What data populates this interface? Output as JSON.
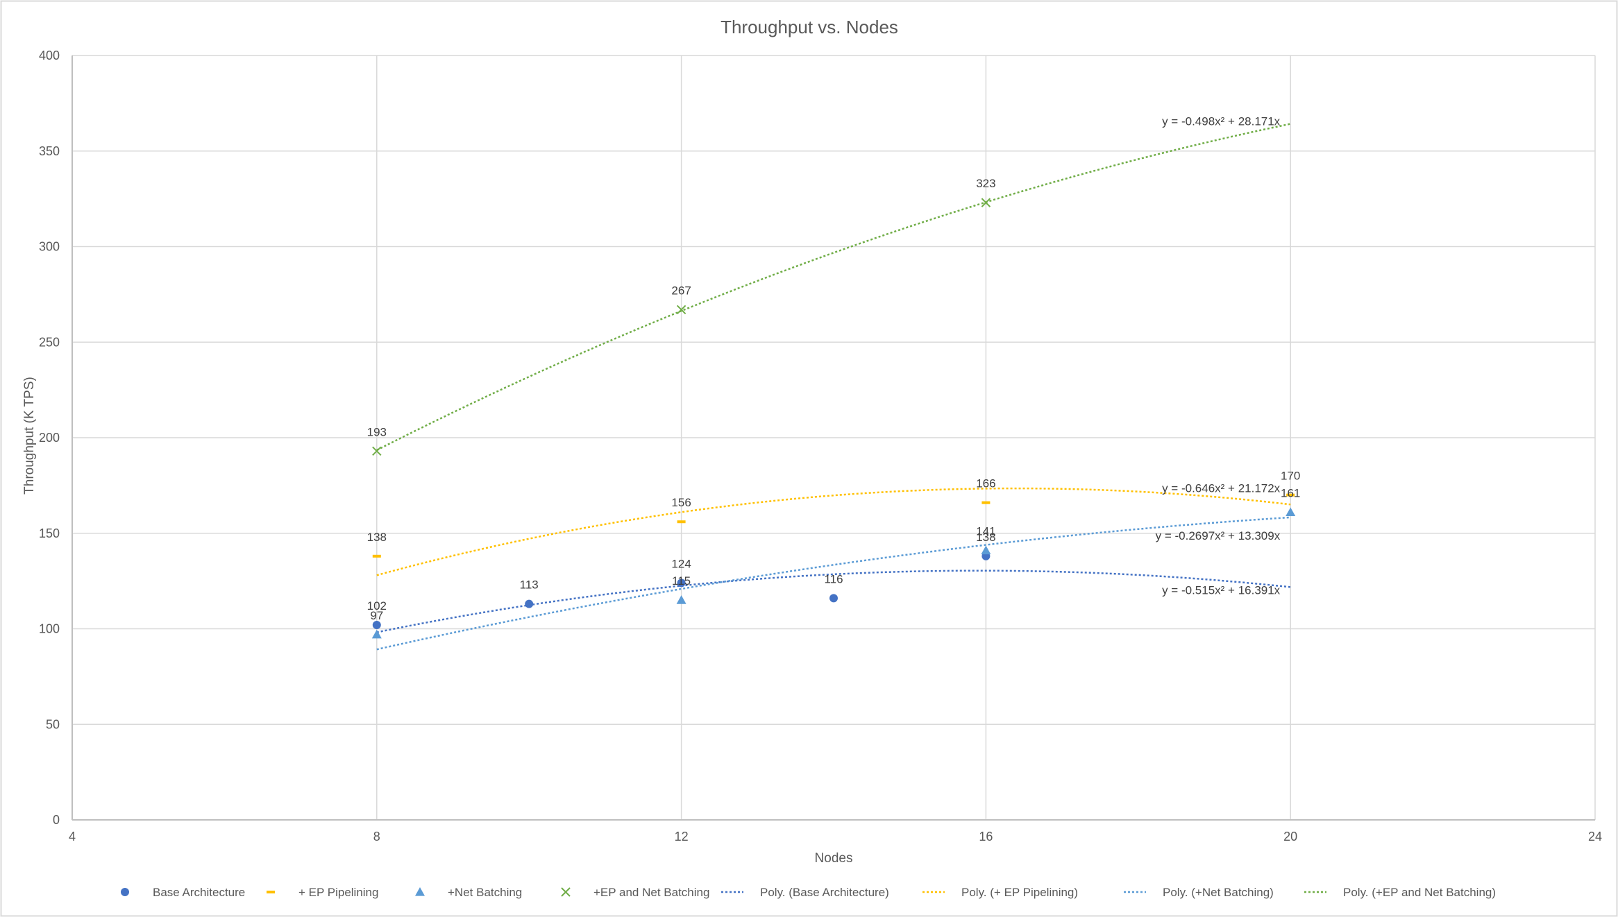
{
  "chart_data": {
    "type": "scatter",
    "title": "Throughput vs. Nodes",
    "xlabel": "Nodes",
    "ylabel": "Throughput (K TPS)",
    "xlim": [
      4,
      24
    ],
    "ylim": [
      0,
      400
    ],
    "x_ticks": [
      4,
      8,
      12,
      16,
      20,
      24
    ],
    "y_ticks": [
      0,
      50,
      100,
      150,
      200,
      250,
      300,
      350,
      400
    ],
    "grid": true,
    "legend": "bottom",
    "series": [
      {
        "name": "Base Architecture",
        "marker": "circle",
        "color": "#4472C4",
        "points": [
          [
            8,
            102
          ],
          [
            10,
            113
          ],
          [
            12,
            124
          ],
          [
            14,
            116
          ],
          [
            16,
            138
          ]
        ],
        "trendline": {
          "name": "Poly. (Base Architecture)",
          "color": "#4472C4",
          "a": -0.515,
          "b": 16.391,
          "c": 0,
          "x_range": [
            8,
            20
          ],
          "equation": "y = -0.515x² + 16.391x"
        }
      },
      {
        "name": "+ EP Pipelining",
        "marker": "dash",
        "color": "#FFC000",
        "points": [
          [
            8,
            138
          ],
          [
            12,
            156
          ],
          [
            16,
            166
          ],
          [
            20,
            170
          ]
        ],
        "trendline": {
          "name": "Poly. (+ EP Pipelining)",
          "color": "#FFC000",
          "a": -0.646,
          "b": 21.172,
          "c": 0,
          "x_range": [
            8,
            20
          ],
          "equation": "y = -0.646x² + 21.172x"
        }
      },
      {
        "name": "+Net Batching",
        "marker": "triangle",
        "color": "#5B9BD5",
        "points": [
          [
            8,
            97
          ],
          [
            12,
            115
          ],
          [
            16,
            141
          ],
          [
            20,
            161
          ]
        ],
        "trendline": {
          "name": "Poly. (+Net Batching)",
          "color": "#5B9BD5",
          "a": -0.2697,
          "b": 13.309,
          "c": 0,
          "x_range": [
            8,
            20
          ],
          "equation": "y = -0.2697x² + 13.309x"
        }
      },
      {
        "name": "+EP and Net Batching",
        "marker": "x",
        "color": "#70AD47",
        "points": [
          [
            8,
            193
          ],
          [
            12,
            267
          ],
          [
            16,
            323
          ]
        ],
        "trendline": {
          "name": "Poly. (+EP and Net Batching)",
          "color": "#70AD47",
          "a": -0.498,
          "b": 28.171,
          "c": 0,
          "x_range": [
            8,
            20
          ],
          "equation": "y = -0.498x² + 28.171x"
        }
      }
    ]
  }
}
